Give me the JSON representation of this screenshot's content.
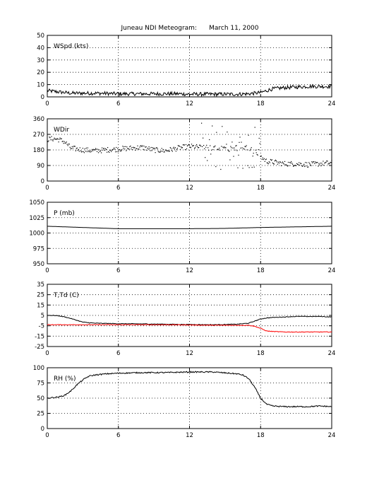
{
  "figure": {
    "title": "Juneau NDI Meteogram:      March 11, 2000",
    "background": "#ffffff",
    "axis_color": "#000000",
    "grid_color": "#000000",
    "trace_colors": {
      "primary": "#000000",
      "dewpoint": "#ff0000"
    }
  },
  "chart_data": [
    {
      "type": "line",
      "label": "WSpd (kts)",
      "x_ticks": [
        0,
        6,
        12,
        18,
        24
      ],
      "y_ticks": [
        0,
        10,
        20,
        30,
        40,
        50
      ],
      "xlim": [
        0,
        24
      ],
      "ylim": [
        0,
        50
      ],
      "grid": true,
      "series": [
        {
          "color": "#000000",
          "style": "line",
          "x": [
            0,
            0.5,
            1,
            1.5,
            2,
            3,
            4,
            5,
            6,
            7,
            8,
            9,
            10,
            11,
            12,
            13,
            14,
            15,
            16,
            17,
            17.5,
            18,
            18.5,
            19,
            20,
            21,
            22,
            23,
            24
          ],
          "y": [
            5,
            4.5,
            4,
            3.5,
            3,
            3,
            3,
            2.8,
            2.5,
            2.5,
            2.5,
            2.5,
            2.5,
            2.5,
            2.2,
            2.2,
            2.2,
            2.2,
            2.2,
            2.5,
            3,
            3.5,
            5,
            6.5,
            7.5,
            8,
            8.5,
            8.5,
            8.5
          ],
          "noise": 1.5
        }
      ]
    },
    {
      "type": "scatter",
      "label": "WDir",
      "x_ticks": [
        0,
        6,
        12,
        18,
        24
      ],
      "y_ticks": [
        0,
        90,
        180,
        270,
        360
      ],
      "xlim": [
        0,
        24
      ],
      "ylim": [
        0,
        360
      ],
      "grid": true,
      "series": [
        {
          "color": "#000000",
          "style": "dots",
          "x": [
            0,
            0.5,
            1,
            1.5,
            2,
            3,
            4,
            5,
            6,
            7,
            8,
            9,
            10,
            11,
            12,
            13,
            14,
            15,
            16,
            17,
            18,
            18.5,
            19,
            20,
            21,
            22,
            23,
            24
          ],
          "y": [
            240,
            245,
            240,
            225,
            190,
            180,
            175,
            180,
            185,
            190,
            195,
            180,
            175,
            190,
            200,
            195,
            190,
            185,
            190,
            195,
            140,
            115,
            110,
            100,
            100,
            95,
            100,
            105
          ],
          "noise": 15,
          "scatter_zone": [
            13,
            18
          ],
          "scatter_range": [
            60,
            340
          ]
        }
      ]
    },
    {
      "type": "line",
      "label": "P (mb)",
      "x_ticks": [
        0,
        6,
        12,
        18,
        24
      ],
      "y_ticks": [
        950,
        975,
        1000,
        1025,
        1050
      ],
      "xlim": [
        0,
        24
      ],
      "ylim": [
        950,
        1050
      ],
      "grid": true,
      "series": [
        {
          "color": "#000000",
          "style": "line",
          "x": [
            0,
            3,
            6,
            9,
            12,
            15,
            18,
            21,
            24
          ],
          "y": [
            1011,
            1009,
            1007,
            1007,
            1007,
            1007.5,
            1009,
            1010,
            1011
          ],
          "noise": 0
        }
      ]
    },
    {
      "type": "line",
      "label": "T,Td (C)",
      "x_ticks": [
        0,
        6,
        12,
        18,
        24
      ],
      "y_ticks": [
        -25,
        -15,
        -5,
        5,
        15,
        25,
        35
      ],
      "xlim": [
        0,
        24
      ],
      "ylim": [
        -25,
        35
      ],
      "grid": true,
      "series": [
        {
          "color": "#000000",
          "style": "line",
          "x": [
            0,
            0.5,
            1,
            1.5,
            2,
            3,
            4,
            6,
            8,
            10,
            12,
            14,
            16,
            17,
            17.5,
            18,
            18.5,
            19,
            20,
            21,
            22,
            23,
            24
          ],
          "y": [
            5,
            5,
            4.5,
            3.5,
            2,
            -1.5,
            -2.5,
            -3,
            -3.2,
            -3.5,
            -3.8,
            -4,
            -3.5,
            -2.5,
            -0.5,
            1.5,
            2.5,
            3,
            3.5,
            4,
            4,
            4,
            3.5
          ],
          "noise": 0.3
        },
        {
          "color": "#ff0000",
          "style": "line",
          "x": [
            0,
            1,
            2,
            3,
            4,
            6,
            8,
            10,
            12,
            14,
            16,
            17,
            17.5,
            18,
            18.5,
            19,
            20,
            21,
            22,
            23,
            24
          ],
          "y": [
            -4,
            -4,
            -4,
            -4,
            -4,
            -4,
            -4,
            -4,
            -4.2,
            -4.5,
            -4.5,
            -4.5,
            -5.5,
            -7.5,
            -10,
            -10.5,
            -11,
            -11,
            -11,
            -11,
            -11
          ],
          "noise": 0.3
        }
      ]
    },
    {
      "type": "line",
      "label": "RH (%)",
      "x_ticks": [
        0,
        6,
        12,
        18,
        24
      ],
      "y_ticks": [
        0,
        25,
        50,
        75,
        100
      ],
      "xlim": [
        0,
        24
      ],
      "ylim": [
        0,
        100
      ],
      "grid": true,
      "series": [
        {
          "color": "#000000",
          "style": "line",
          "x": [
            0,
            0.5,
            1,
            1.5,
            2,
            2.5,
            3,
            3.5,
            4,
            5,
            6,
            8,
            10,
            12,
            14,
            16,
            16.5,
            17,
            17.5,
            18,
            18.5,
            19,
            20,
            21,
            22,
            23,
            24
          ],
          "y": [
            50,
            51,
            52,
            55,
            62,
            72,
            80,
            86,
            88,
            90,
            91,
            92,
            92,
            93,
            93,
            90,
            88,
            82,
            68,
            50,
            40,
            37,
            36,
            36,
            36,
            37,
            36
          ],
          "noise": 1.0
        }
      ]
    }
  ]
}
